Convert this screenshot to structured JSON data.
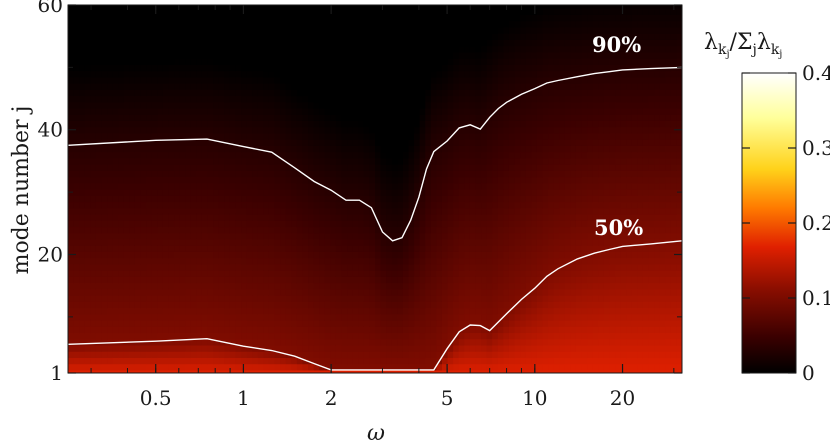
{
  "chart_data": {
    "type": "heatmap",
    "xlabel": "ω",
    "ylabel": "mode number j",
    "x_scale": "log",
    "xlim": [
      0.25,
      32
    ],
    "ylim": [
      1,
      60
    ],
    "x_ticks": [
      0.5,
      1,
      2,
      5,
      10,
      20
    ],
    "x_tick_labels": [
      "0.5",
      "1",
      "2",
      "5",
      "10",
      "20"
    ],
    "y_ticks": [
      1,
      20,
      40,
      60
    ],
    "y_tick_labels": [
      "1",
      "20",
      "40",
      "60"
    ],
    "colorbar": {
      "title": "λkj/Σjλkj",
      "title_parts": {
        "num": "λ",
        "num_sub": "k",
        "num_subsub": "j",
        "slash": "/Σ",
        "sum_sub": "j",
        "den": "λ",
        "den_sub": "k",
        "den_subsub": "j"
      },
      "range": [
        0,
        0.4
      ],
      "ticks": [
        0,
        0.1,
        0.2,
        0.3,
        0.4
      ],
      "tick_labels": [
        "0",
        "0.1",
        "0.2",
        "0.3",
        "0.4"
      ],
      "colormap": [
        "#000000",
        "#3a0000",
        "#8a0e00",
        "#e02000",
        "#ff7a00",
        "#ffd21a",
        "#ffff9a",
        "#ffffff"
      ]
    },
    "contours": [
      {
        "label": "90%",
        "x": [
          0.25,
          0.5,
          0.75,
          1.0,
          1.25,
          1.5,
          1.75,
          2.0,
          2.25,
          2.5,
          2.75,
          3.0,
          3.25,
          3.5,
          3.75,
          4.0,
          4.25,
          4.5,
          5.0,
          5.5,
          6.0,
          6.5,
          7.0,
          7.5,
          8.0,
          9.0,
          10.0,
          11.0,
          12.0,
          14.0,
          16.0,
          18.0,
          20.0,
          25.0,
          32.0
        ],
        "y": [
          37.5,
          38.3,
          38.5,
          37.3,
          36.4,
          33.9,
          31.7,
          30.3,
          28.7,
          28.7,
          27.5,
          23.6,
          22.2,
          22.7,
          25.5,
          29.2,
          33.7,
          36.5,
          38.2,
          40.3,
          40.8,
          40.1,
          42.0,
          43.4,
          44.4,
          45.7,
          46.6,
          47.5,
          47.9,
          48.5,
          49.0,
          49.3,
          49.6,
          49.8,
          50.0
        ]
      },
      {
        "label": "50%",
        "x": [
          0.25,
          0.5,
          0.75,
          1.0,
          1.25,
          1.5,
          1.75,
          2.0,
          2.5,
          3.0,
          3.5,
          4.0,
          4.5,
          5.0,
          5.5,
          6.0,
          6.5,
          7.0,
          8.0,
          9.0,
          10.0,
          11.0,
          12.0,
          14.0,
          16.0,
          18.0,
          20.0,
          25.0,
          32.0
        ],
        "y": [
          5.6,
          6.1,
          6.5,
          5.3,
          4.6,
          3.7,
          2.5,
          1.5,
          1.5,
          1.5,
          1.5,
          1.5,
          1.5,
          4.9,
          7.6,
          8.7,
          8.6,
          7.8,
          10.5,
          12.8,
          14.6,
          16.5,
          17.7,
          19.3,
          20.2,
          20.8,
          21.3,
          21.7,
          22.2
        ]
      }
    ]
  }
}
